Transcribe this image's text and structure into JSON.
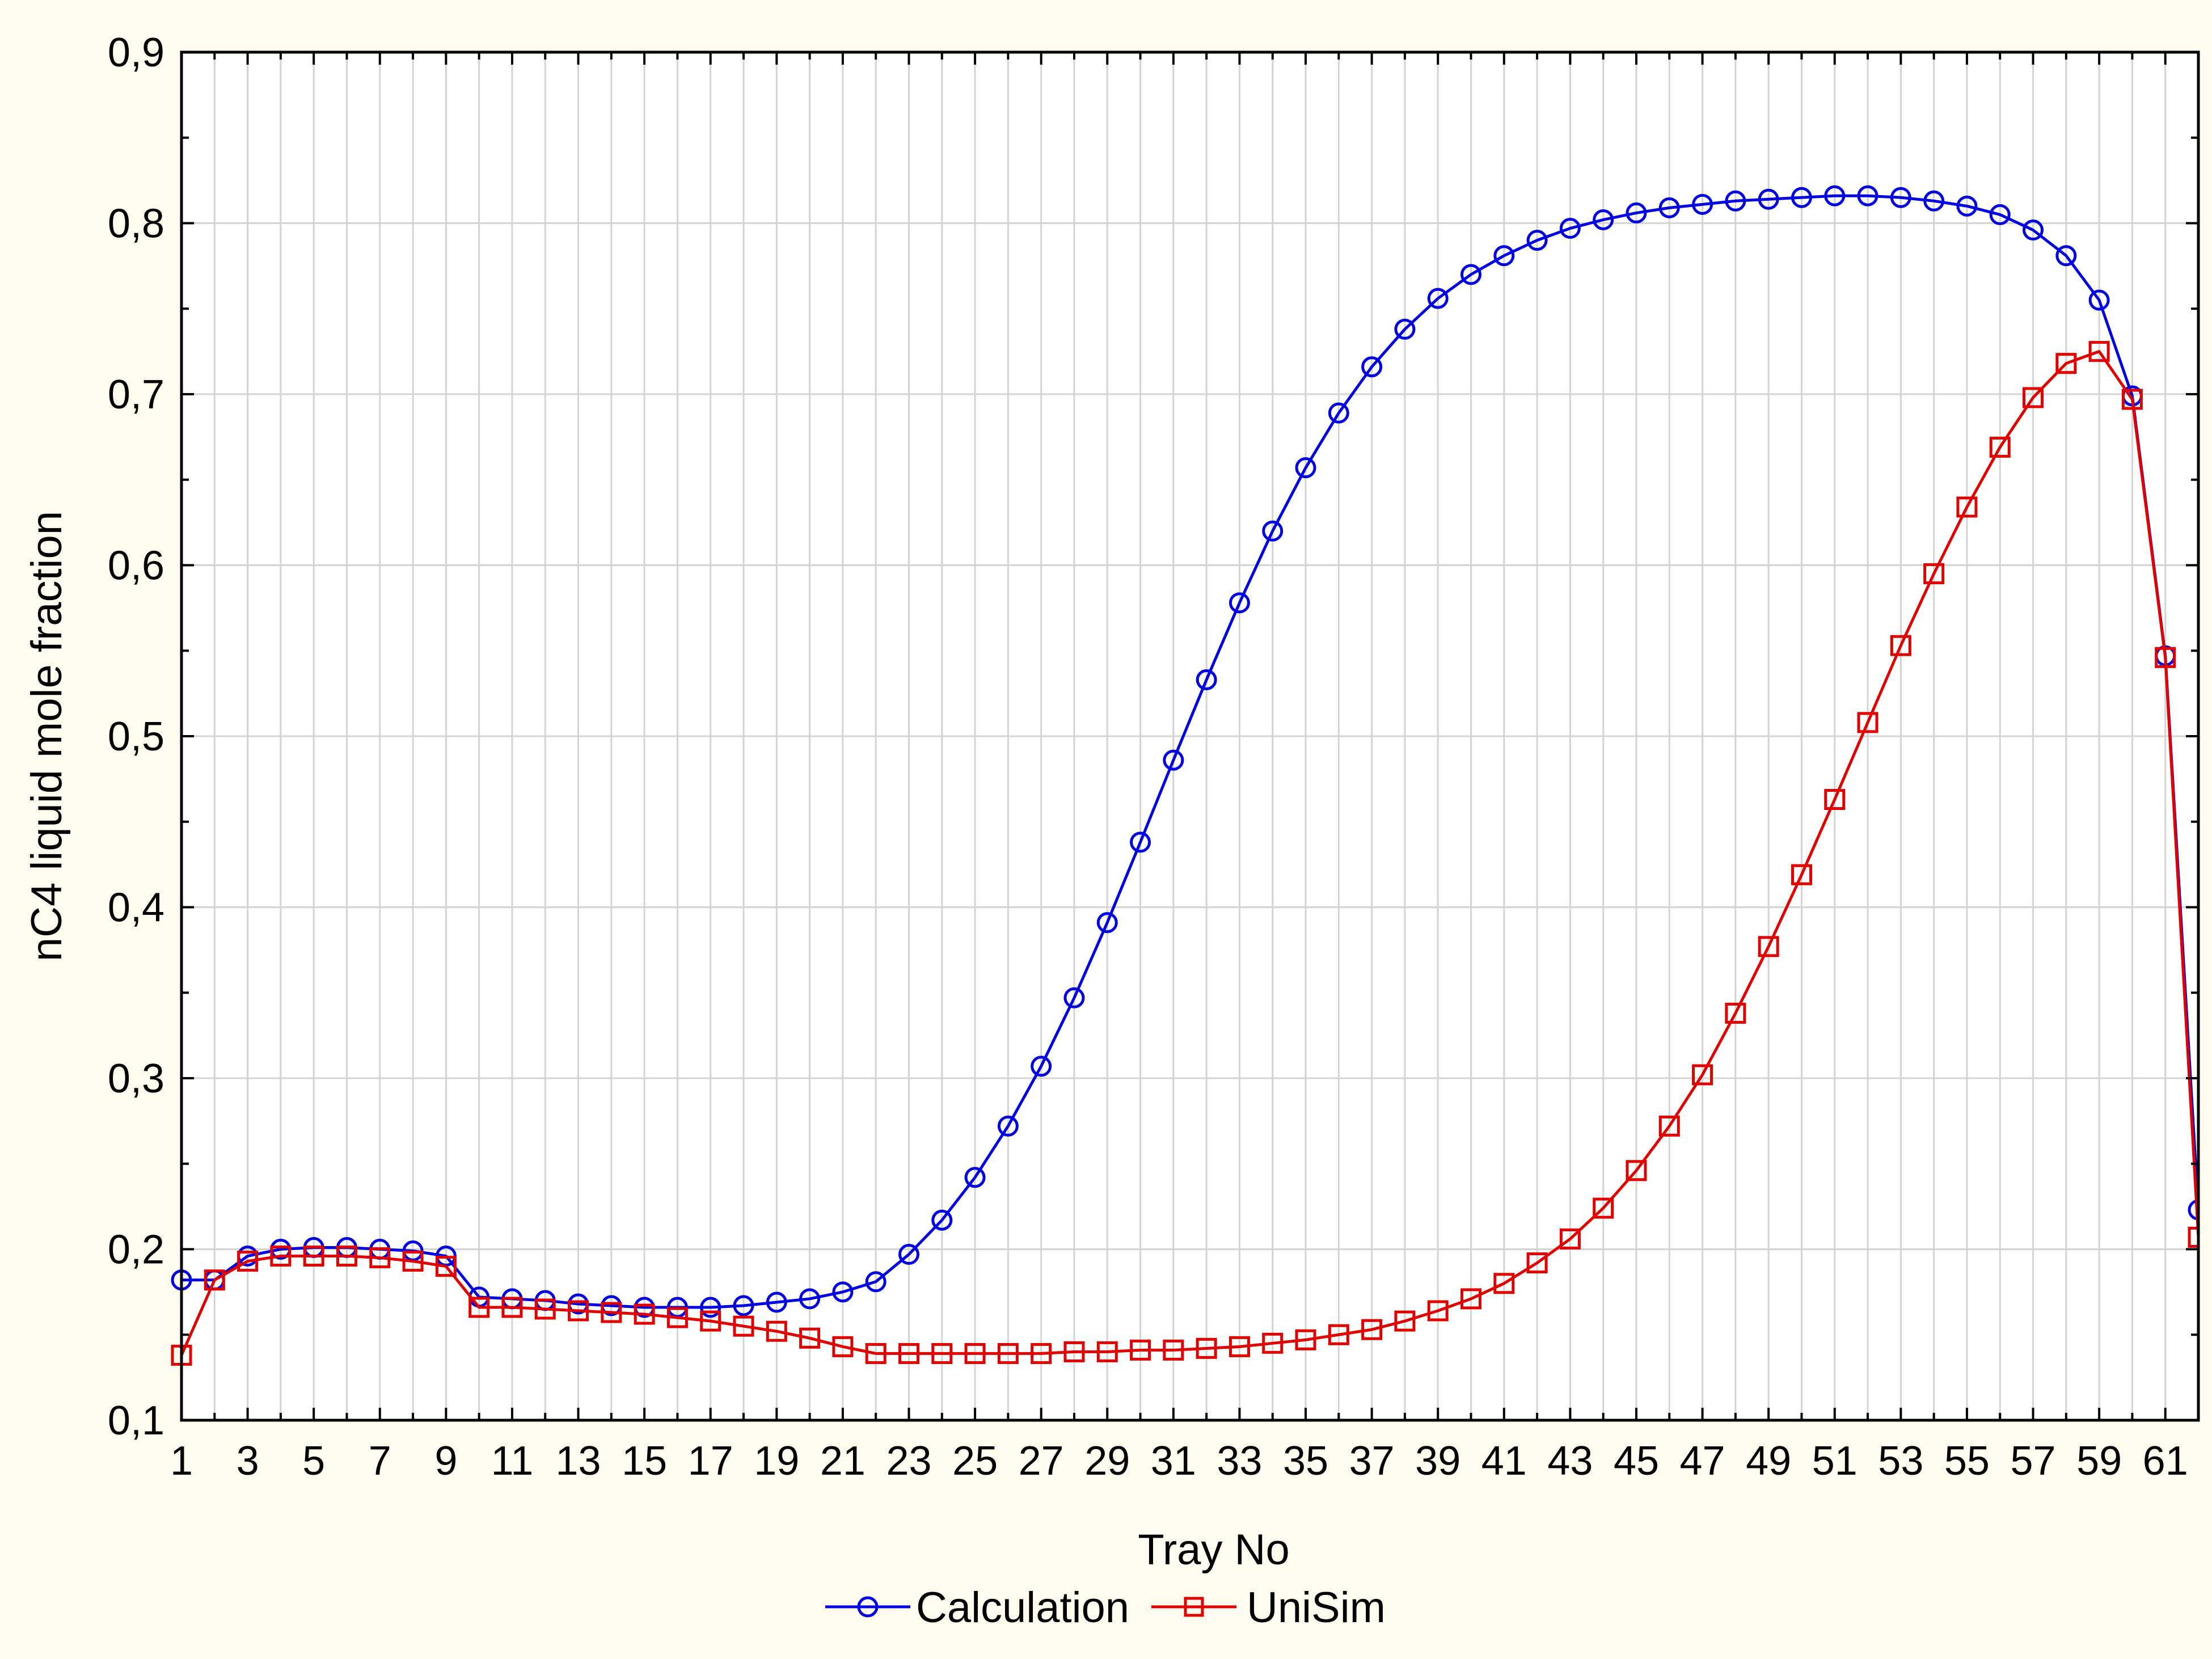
{
  "chart_data": {
    "type": "line",
    "xlabel": "Tray No",
    "ylabel": "nC4 liquid mole fraction",
    "xlim": [
      1,
      62
    ],
    "ylim": [
      0.1,
      0.9
    ],
    "x_tick_labels": [
      "1",
      "3",
      "5",
      "7",
      "9",
      "11",
      "13",
      "15",
      "17",
      "19",
      "21",
      "23",
      "25",
      "27",
      "29",
      "31",
      "33",
      "35",
      "37",
      "39",
      "41",
      "43",
      "45",
      "47",
      "49",
      "51",
      "53",
      "55",
      "57",
      "59",
      "61"
    ],
    "y_tick_labels": [
      "0,1",
      "0,2",
      "0,3",
      "0,4",
      "0,5",
      "0,6",
      "0,7",
      "0,8",
      "0,9"
    ],
    "grid": true,
    "legend_position": "bottom-center",
    "x": [
      1,
      2,
      3,
      4,
      5,
      6,
      7,
      8,
      9,
      10,
      11,
      12,
      13,
      14,
      15,
      16,
      17,
      18,
      19,
      20,
      21,
      22,
      23,
      24,
      25,
      26,
      27,
      28,
      29,
      30,
      31,
      32,
      33,
      34,
      35,
      36,
      37,
      38,
      39,
      40,
      41,
      42,
      43,
      44,
      45,
      46,
      47,
      48,
      49,
      50,
      51,
      52,
      53,
      54,
      55,
      56,
      57,
      58,
      59,
      60,
      61,
      62
    ],
    "series": [
      {
        "name": "Calculation",
        "color": "#0000e0",
        "marker": "circle",
        "values": [
          0.182,
          0.182,
          0.196,
          0.2,
          0.201,
          0.201,
          0.2,
          0.199,
          0.196,
          0.172,
          0.171,
          0.17,
          0.168,
          0.167,
          0.166,
          0.166,
          0.166,
          0.167,
          0.169,
          0.171,
          0.175,
          0.181,
          0.197,
          0.217,
          0.242,
          0.272,
          0.307,
          0.347,
          0.391,
          0.438,
          0.486,
          0.533,
          0.578,
          0.62,
          0.657,
          0.689,
          0.716,
          0.738,
          0.756,
          0.77,
          0.781,
          0.79,
          0.797,
          0.802,
          0.806,
          0.809,
          0.811,
          0.813,
          0.814,
          0.815,
          0.816,
          0.816,
          0.815,
          0.813,
          0.81,
          0.805,
          0.796,
          0.781,
          0.755,
          0.699,
          0.547,
          0.223
        ]
      },
      {
        "name": "UniSim",
        "color": "#e00000",
        "marker": "square",
        "values": [
          0.138,
          0.182,
          0.193,
          0.196,
          0.196,
          0.196,
          0.195,
          0.193,
          0.19,
          0.166,
          0.166,
          0.165,
          0.164,
          0.163,
          0.162,
          0.16,
          0.158,
          0.155,
          0.152,
          0.148,
          0.143,
          0.139,
          0.139,
          0.139,
          0.139,
          0.139,
          0.139,
          0.14,
          0.14,
          0.141,
          0.141,
          0.142,
          0.143,
          0.145,
          0.147,
          0.15,
          0.153,
          0.158,
          0.164,
          0.171,
          0.18,
          0.192,
          0.206,
          0.224,
          0.246,
          0.272,
          0.302,
          0.338,
          0.377,
          0.419,
          0.463,
          0.508,
          0.553,
          0.595,
          0.634,
          0.669,
          0.698,
          0.718,
          0.725,
          0.697,
          0.546,
          0.207
        ]
      }
    ]
  }
}
